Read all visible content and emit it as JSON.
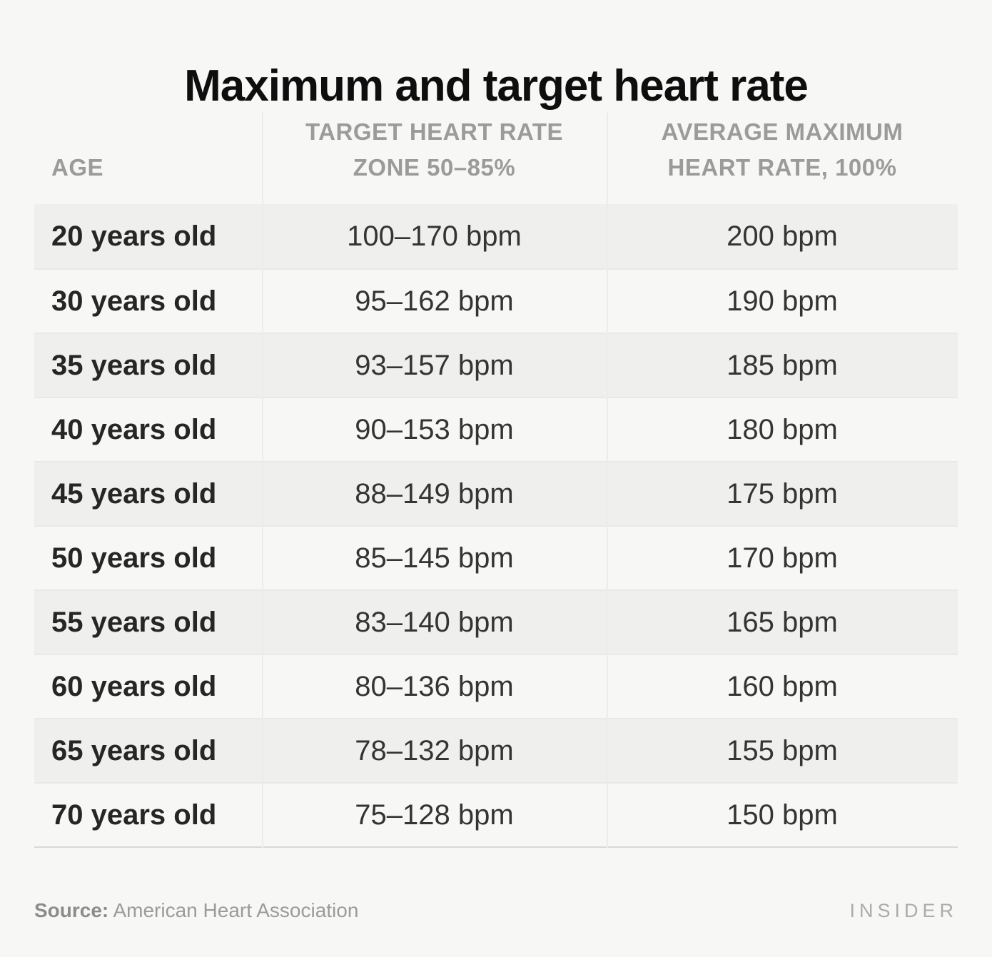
{
  "title": "Maximum and target heart rate",
  "table": {
    "columns": [
      {
        "label": "AGE"
      },
      {
        "lines": [
          "TARGET HEART RATE",
          "ZONE 50–85%"
        ]
      },
      {
        "lines": [
          "AVERAGE MAXIMUM",
          "HEART RATE, 100%"
        ]
      }
    ],
    "rows": [
      {
        "age": "20 years old",
        "target": "100–170 bpm",
        "max": "200 bpm"
      },
      {
        "age": "30 years old",
        "target": "95–162 bpm",
        "max": "190 bpm"
      },
      {
        "age": "35 years old",
        "target": "93–157 bpm",
        "max": "185 bpm"
      },
      {
        "age": "40 years old",
        "target": "90–153 bpm",
        "max": "180 bpm"
      },
      {
        "age": "45 years old",
        "target": "88–149 bpm",
        "max": "175 bpm"
      },
      {
        "age": "50 years old",
        "target": "85–145 bpm",
        "max": "170 bpm"
      },
      {
        "age": "55 years old",
        "target": "83–140 bpm",
        "max": "165 bpm"
      },
      {
        "age": "60 years old",
        "target": "80–136 bpm",
        "max": "160 bpm"
      },
      {
        "age": "65 years old",
        "target": "78–132 bpm",
        "max": "155 bpm"
      },
      {
        "age": "70 years old",
        "target": "75–128 bpm",
        "max": "150 bpm"
      }
    ]
  },
  "footer": {
    "source_label": "Source:",
    "source": "American Heart Association",
    "brand": "INSIDER"
  },
  "colors": {
    "background": "#f7f7f6",
    "row_band": "#efefee",
    "row_separator": "#e9e9e8",
    "column_divider": "#ececeb",
    "bottom_border": "#d9d9d8",
    "title_text": "#0e0e0e",
    "header_text": "#9b9b9a",
    "age_text": "#262625",
    "body_text": "#343433",
    "footer_text": "#9b9b9a",
    "source_label_text": "#8c8c8b",
    "brand_text": "#ababab"
  },
  "chart_data": {
    "type": "table",
    "title": "Maximum and target heart rate",
    "columns": [
      "AGE",
      "TARGET HEART RATE ZONE 50–85%",
      "AVERAGE MAXIMUM HEART RATE, 100%"
    ],
    "rows": [
      [
        "20 years old",
        "100–170 bpm",
        "200 bpm"
      ],
      [
        "30 years old",
        "95–162 bpm",
        "190 bpm"
      ],
      [
        "35 years old",
        "93–157 bpm",
        "185 bpm"
      ],
      [
        "40 years old",
        "90–153 bpm",
        "180 bpm"
      ],
      [
        "45 years old",
        "88–149 bpm",
        "175 bpm"
      ],
      [
        "50 years old",
        "85–145 bpm",
        "170 bpm"
      ],
      [
        "55 years old",
        "83–140 bpm",
        "165 bpm"
      ],
      [
        "60 years old",
        "80–136 bpm",
        "160 bpm"
      ],
      [
        "65 years old",
        "78–132 bpm",
        "155 bpm"
      ],
      [
        "70 years old",
        "75–128 bpm",
        "150 bpm"
      ]
    ],
    "source": "American Heart Association",
    "layout_hints": {
      "striped_rows": "odd rows shaded",
      "column_alignment": [
        "left",
        "center",
        "center"
      ],
      "grid": "vertical column rules + horizontal row separators"
    }
  }
}
